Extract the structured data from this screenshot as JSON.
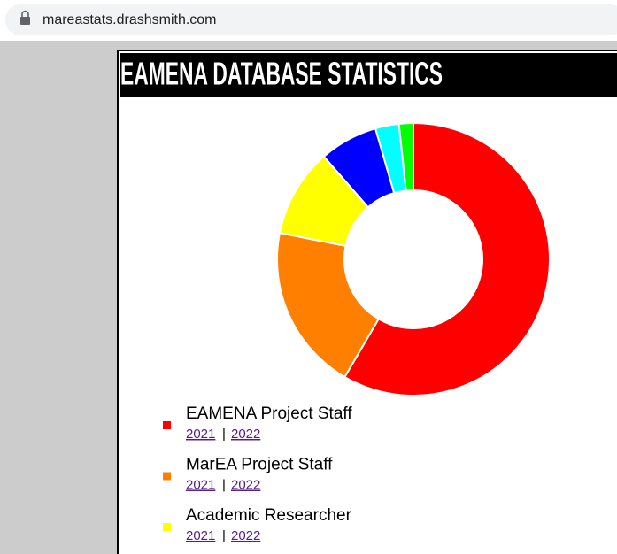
{
  "browser": {
    "url": "mareastats.drashsmith.com"
  },
  "header": {
    "title": "EAMENA DATABASE STATISTICS"
  },
  "chart_data": {
    "type": "donut",
    "categories": [
      "EAMENA Project Staff",
      "MarEA Project Staff",
      "Academic Researcher",
      null,
      null,
      null
    ],
    "values": [
      58.4,
      19.7,
      10.5,
      6.9,
      2.8,
      1.7
    ],
    "colors": [
      "#ff0000",
      "#ff8000",
      "#ffff00",
      "#0000ff",
      "#00ffff",
      "#00ff00"
    ]
  },
  "legend": {
    "links": [
      "2021",
      "2022"
    ],
    "separator": "|"
  }
}
